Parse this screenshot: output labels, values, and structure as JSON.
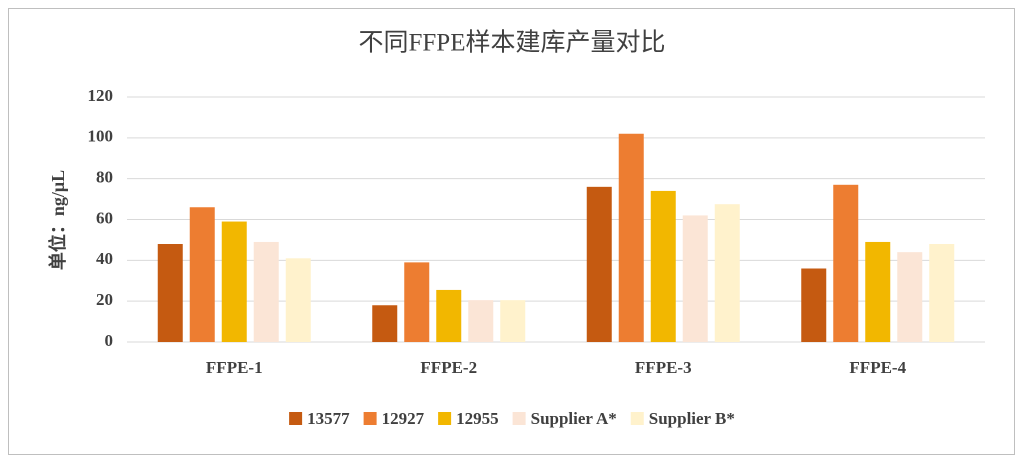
{
  "chart_data": {
    "type": "bar",
    "title": "不同FFPE样本建库产量对比",
    "y_label": "单位：ng/μL",
    "categories": [
      "FFPE-1",
      "FFPE-2",
      "FFPE-3",
      "FFPE-4"
    ],
    "series": [
      {
        "name": "13577",
        "color": "#c55a11",
        "values": [
          48,
          18,
          76,
          36
        ]
      },
      {
        "name": "12927",
        "color": "#ed7d31",
        "values": [
          66,
          39,
          102,
          77
        ]
      },
      {
        "name": "12955",
        "color": "#f2b700",
        "values": [
          59,
          25.5,
          74,
          49
        ]
      },
      {
        "name": "Supplier A*",
        "color": "#fbe5d6",
        "values": [
          49,
          20.5,
          62,
          44
        ]
      },
      {
        "name": "Supplier B*",
        "color": "#fff2cc",
        "values": [
          41,
          20.5,
          67.5,
          48
        ]
      }
    ],
    "ylim": [
      0,
      120
    ],
    "yticks": [
      0,
      20,
      40,
      60,
      80,
      100,
      120
    ],
    "grid": true,
    "legend": "bottom"
  }
}
